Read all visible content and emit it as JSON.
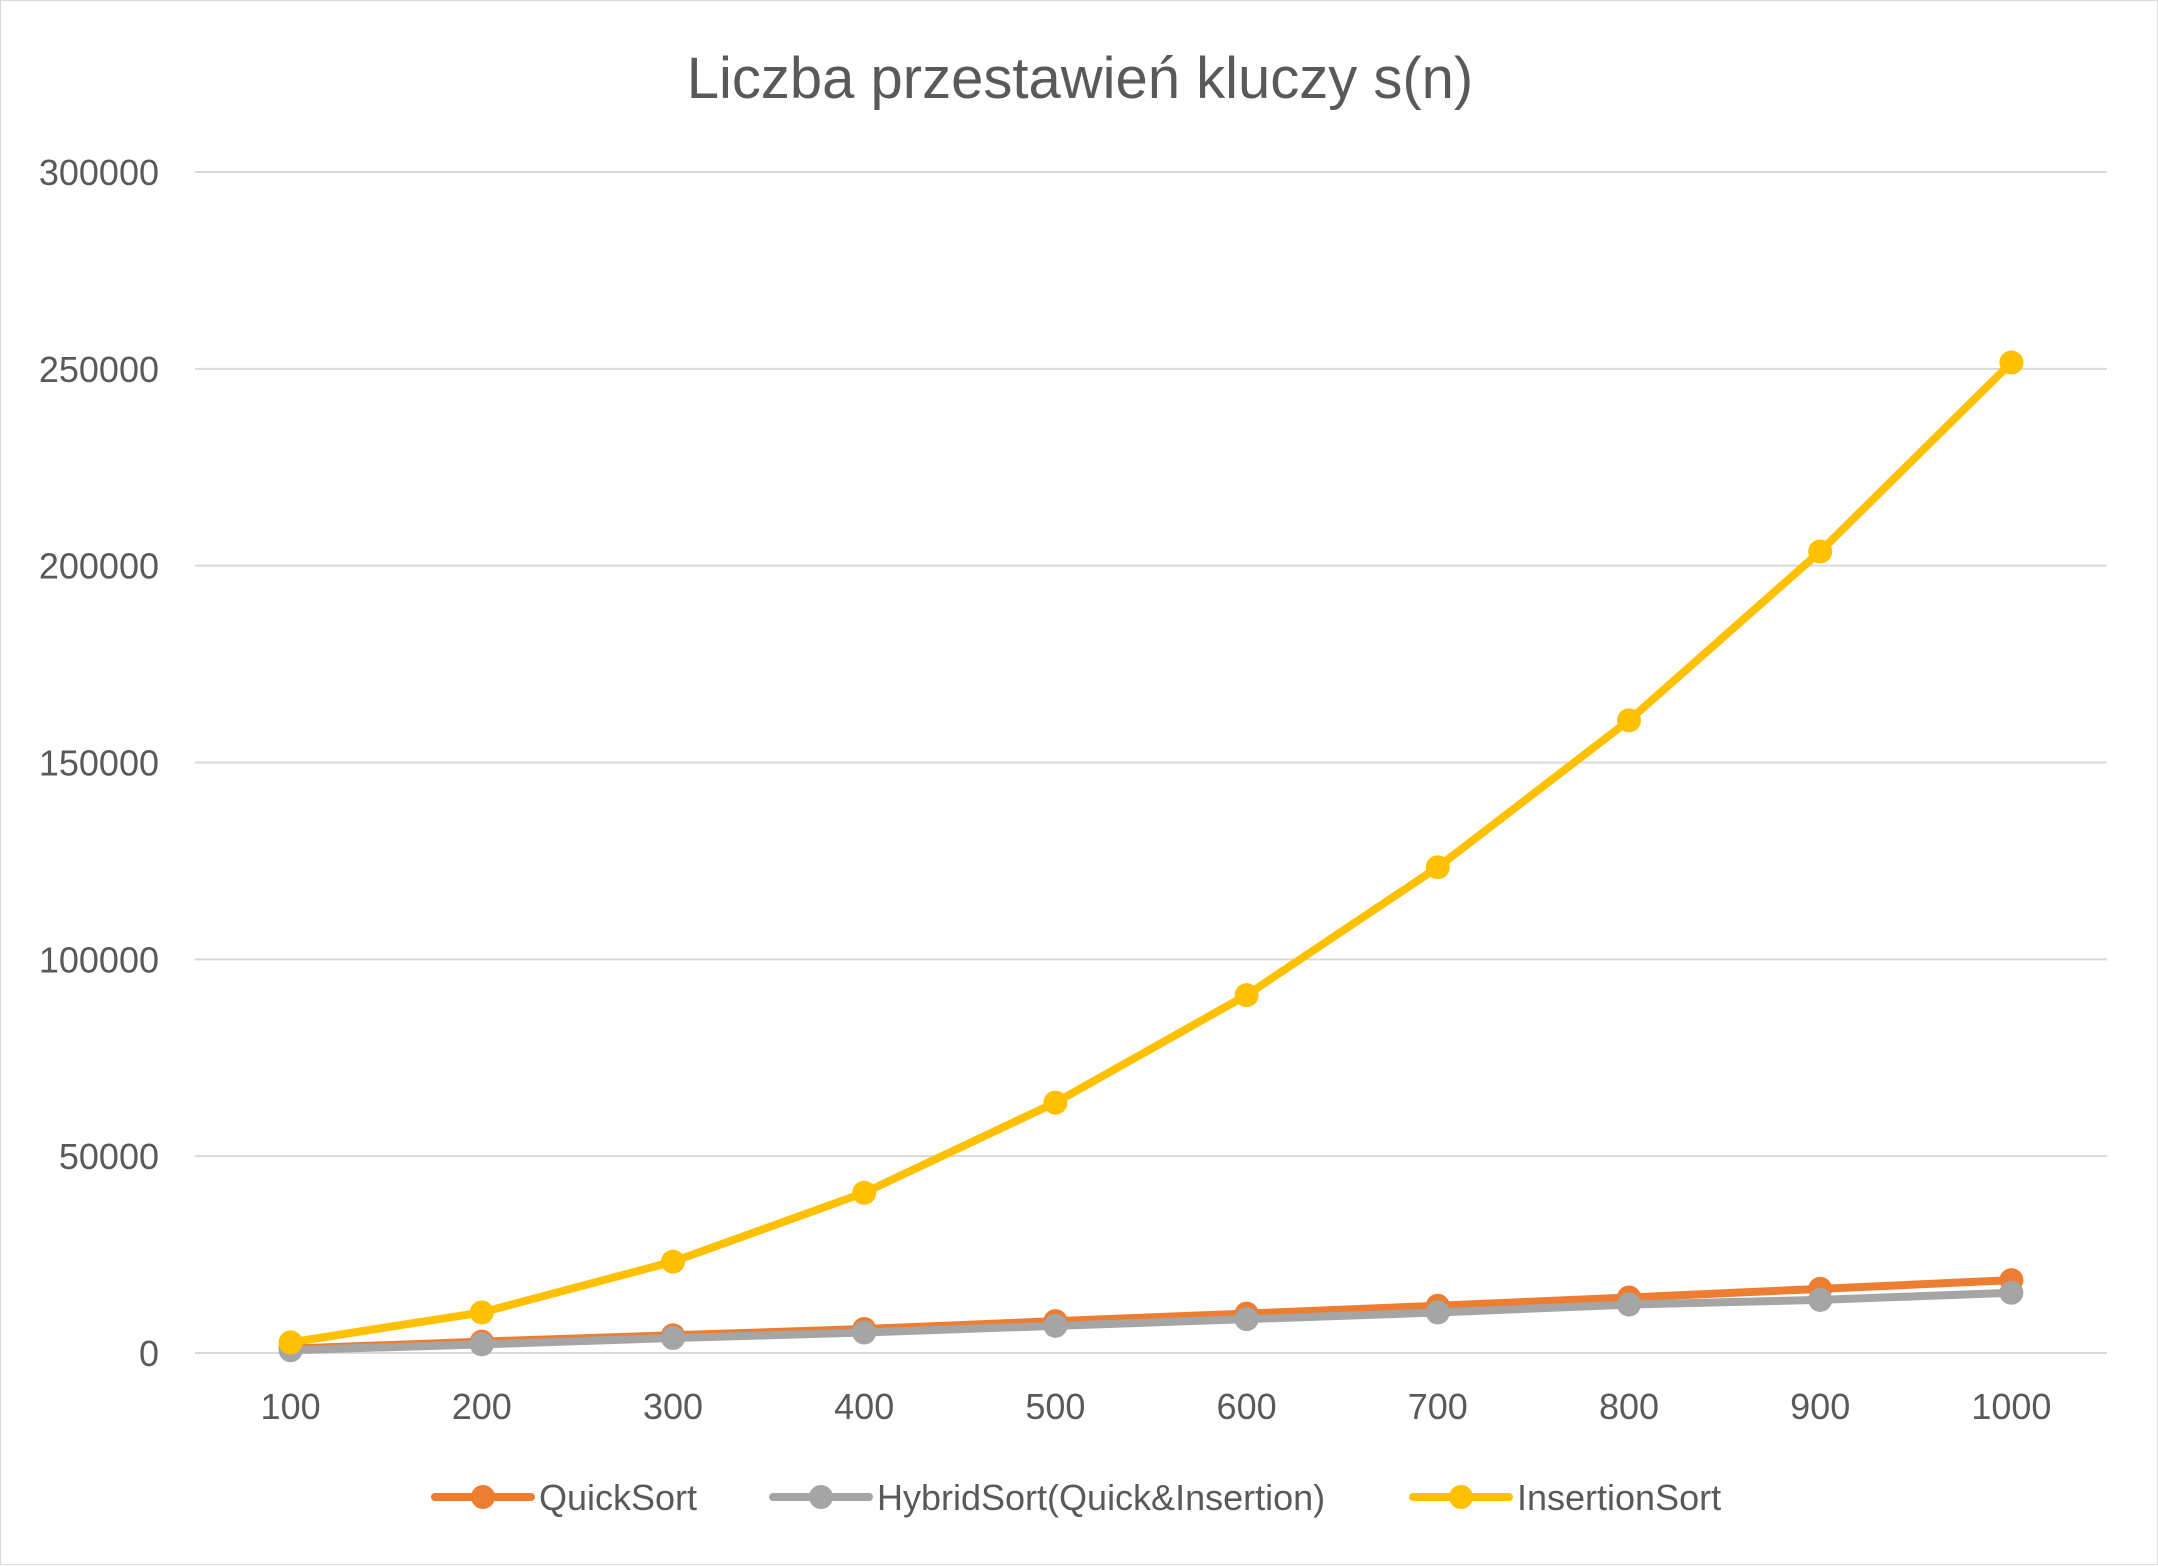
{
  "chart_data": {
    "type": "line",
    "title": "Liczba przestawień kluczy s(n)",
    "xlabel": "",
    "ylabel": "",
    "categories": [
      "100",
      "200",
      "300",
      "400",
      "500",
      "600",
      "700",
      "800",
      "900",
      "1000"
    ],
    "ylim": [
      0,
      300000
    ],
    "yticks": [
      "0",
      "50000",
      "100000",
      "150000",
      "200000",
      "250000",
      "300000"
    ],
    "grid": true,
    "legend": "bottom",
    "series": [
      {
        "name": "QuickSort",
        "color": "#ED7D31",
        "values": [
          1100,
          2900,
          4500,
          6100,
          8100,
          10000,
          12000,
          14100,
          16300,
          18500
        ]
      },
      {
        "name": "HybridSort(Quick&Insertion)",
        "color": "#A5A5A5",
        "values": [
          700,
          2200,
          3800,
          5200,
          6900,
          8600,
          10300,
          12300,
          13500,
          15300
        ]
      },
      {
        "name": "InsertionSort",
        "color": "#FFC000",
        "values": [
          2700,
          10300,
          23200,
          40700,
          63600,
          90900,
          123400,
          160700,
          203600,
          251600
        ]
      }
    ]
  }
}
